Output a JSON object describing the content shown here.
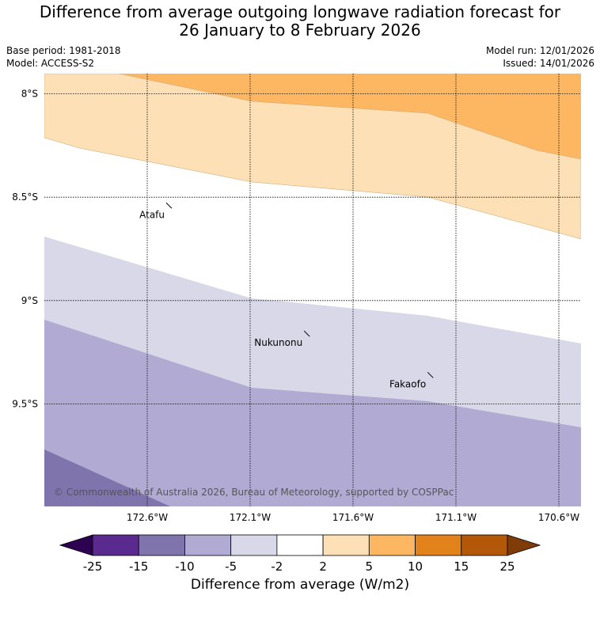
{
  "title_line1": "Difference from average outgoing longwave radiation forecast for",
  "title_line2": "26 January to 8 February 2026",
  "base_period": "Base period: 1981-2018",
  "model": "Model: ACCESS-S2",
  "model_run": "Model run: 12/01/2026",
  "issued": "Issued: 14/01/2026",
  "lat_labels": [
    {
      "label": "8°S",
      "value": -8.0
    },
    {
      "label": "8.5°S",
      "value": -8.5
    },
    {
      "label": "9°S",
      "value": -9.0
    },
    {
      "label": "9.5°S",
      "value": -9.5
    }
  ],
  "lon_labels": [
    {
      "label": "172.6°W",
      "value": -172.6
    },
    {
      "label": "172.1°W",
      "value": -172.1
    },
    {
      "label": "171.6°W",
      "value": -171.6
    },
    {
      "label": "171.1°W",
      "value": -171.1
    },
    {
      "label": "170.6°W",
      "value": -170.6
    }
  ],
  "places": [
    {
      "name": "Atafu",
      "lon": -172.5,
      "lat": -8.55
    },
    {
      "name": "Nukunonu",
      "lon": -171.83,
      "lat": -9.17
    },
    {
      "name": "Fakaofo",
      "lon": -171.23,
      "lat": -9.37
    }
  ],
  "copyright": "© Commonwealth of Australia 2026, Bureau of Meteorology, supported by COSPPac",
  "colorbar": {
    "label": "Difference from average (W/m2)",
    "ticks": [
      "-25",
      "-15",
      "-10",
      "-5",
      "-2",
      "2",
      "5",
      "10",
      "15",
      "25"
    ],
    "colors": [
      "#5a2a8f",
      "#8074ad",
      "#b1abd3",
      "#d8d8e9",
      "#ffffff",
      "#fee0b6",
      "#fdb762",
      "#e2821b",
      "#b35808"
    ],
    "under_color": "#2d0250",
    "over_color": "#7f3b08"
  }
}
